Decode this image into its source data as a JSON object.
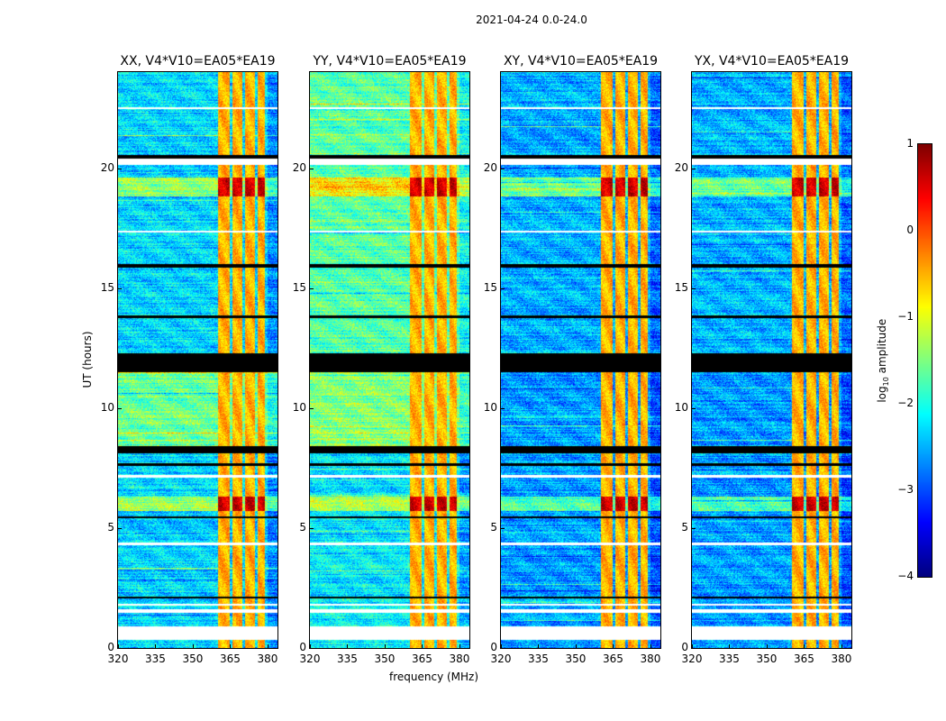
{
  "chart_data": {
    "type": "heatmap",
    "title": "2021-04-24 0.0-24.0",
    "xlabel": "frequency (MHz)",
    "ylabel": "UT (hours)",
    "xlim": [
      320,
      384
    ],
    "ylim": [
      0,
      24
    ],
    "xticks": [
      "320",
      "335",
      "350",
      "365",
      "380"
    ],
    "xtick_values": [
      320,
      335,
      350,
      365,
      380
    ],
    "yticks": [
      "0",
      "5",
      "10",
      "15",
      "20"
    ],
    "ytick_values": [
      0,
      5,
      10,
      15,
      20
    ],
    "colormap": "jet",
    "colorbar": {
      "label_prefix": "log",
      "label_sub": "10",
      "label_suffix": " amplitude",
      "range": [
        -4,
        1
      ],
      "ticks": [
        "−4",
        "−3",
        "−2",
        "−1",
        "0",
        "1"
      ],
      "tick_values": [
        -4,
        -3,
        -2,
        -1,
        0,
        1
      ]
    },
    "panels": [
      {
        "title": "XX, V4*V10=EA05*EA19",
        "base_log_amp": -2.3,
        "mid_block_log_amp": -1.6,
        "top_block_log_amp": -2.3
      },
      {
        "title": "YY, V4*V10=EA05*EA19",
        "base_log_amp": -2.2,
        "mid_block_log_amp": -1.5,
        "top_block_log_amp": -1.7
      },
      {
        "title": "XY, V4*V10=EA05*EA19",
        "base_log_amp": -2.6,
        "mid_block_log_amp": -2.6,
        "top_block_log_amp": -2.5
      },
      {
        "title": "YX, V4*V10=EA05*EA19",
        "base_log_amp": -2.6,
        "mid_block_log_amp": -2.6,
        "top_block_log_amp": -2.5
      }
    ],
    "rfi_band_mhz": [
      360,
      380
    ],
    "rfi_log_amp": -0.5,
    "rfi_gap_channels_mhz": [
      365.5,
      370.5,
      375.5,
      379.5
    ],
    "strong_rfi_hours": [
      [
        18.8,
        19.6
      ],
      [
        5.7,
        6.3
      ]
    ],
    "flagged_white_hours": [
      [
        0.35,
        0.9
      ],
      [
        1.45,
        1.6
      ],
      [
        1.75,
        1.85
      ],
      [
        20.15,
        20.4
      ],
      [
        22.45,
        22.55
      ],
      [
        17.3,
        17.4
      ],
      [
        7.1,
        7.2
      ],
      [
        4.3,
        4.4
      ]
    ],
    "flagged_black_hours": [
      [
        11.5,
        12.3
      ],
      [
        8.1,
        8.4
      ],
      [
        20.4,
        20.55
      ],
      [
        15.85,
        16.0
      ],
      [
        13.75,
        13.85
      ],
      [
        2.05,
        2.15
      ],
      [
        7.6,
        7.7
      ],
      [
        5.4,
        5.5
      ]
    ]
  }
}
